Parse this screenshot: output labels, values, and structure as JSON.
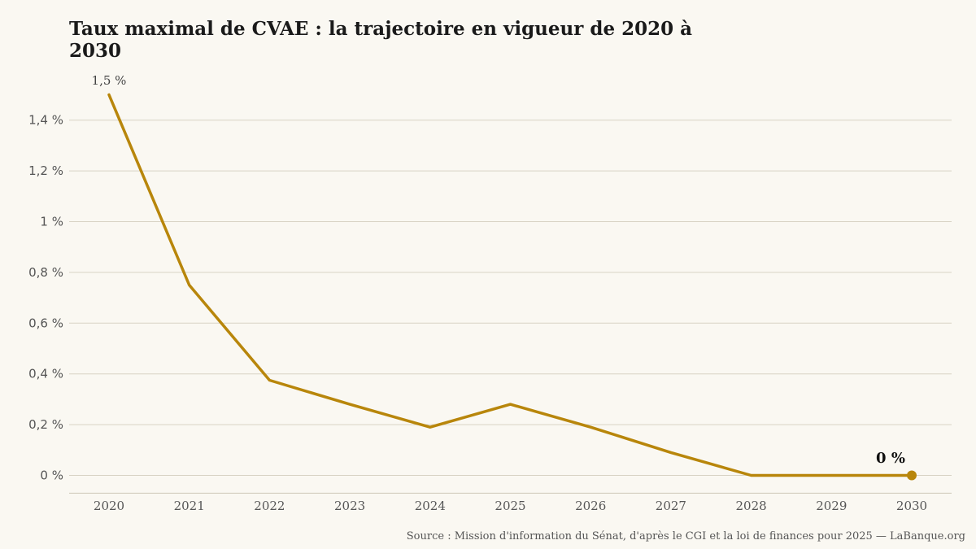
{
  "chart_data": {
    "type": "line",
    "title": "Taux maximal de CVAE : la trajectoire en vigueur de 2020 à 2030",
    "source": "Source : Mission d'information du Sénat, d'après le CGI et la loi de finances pour 2025 — LaBanque.org",
    "x": [
      2020,
      2021,
      2022,
      2023,
      2024,
      2025,
      2026,
      2027,
      2028,
      2029,
      2030
    ],
    "x_tick_labels": [
      "2020",
      "2021",
      "2022",
      "2023",
      "2024",
      "2025",
      "2026",
      "2027",
      "2028",
      "2029",
      "2030"
    ],
    "series": [
      {
        "values": [
          1.5,
          0.75,
          0.375,
          0.28,
          0.19,
          0.28,
          0.19,
          0.09,
          0.0,
          0.0,
          0.0
        ]
      }
    ],
    "ylim": [
      -0.07,
      1.5
    ],
    "y_ticks": [
      0,
      0.2,
      0.4,
      0.6,
      0.8,
      1.0,
      1.2,
      1.4
    ],
    "y_tick_labels": [
      "0 %",
      "0,2 %",
      "0,4 %",
      "0,6 %",
      "0,8 %",
      "1 %",
      "1,2 %",
      "1,4 %"
    ],
    "annotations": [
      {
        "x": 2020,
        "text": "1,5 %"
      },
      {
        "x": 2030,
        "text": "0 %"
      }
    ],
    "grid": true,
    "colors": {
      "line": "#b8860b",
      "grid": "#d8d3c4",
      "background": "#faf8f2"
    }
  }
}
